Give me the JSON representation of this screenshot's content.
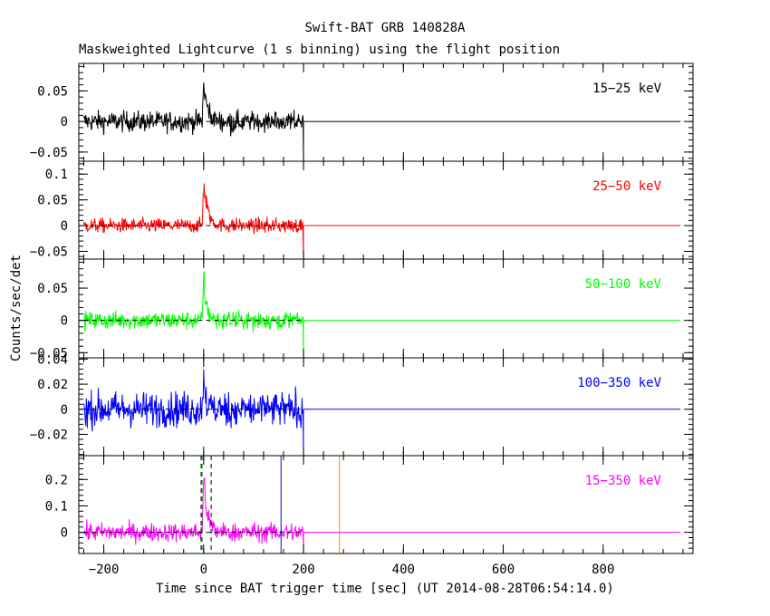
{
  "chart_data": {
    "type": "line",
    "title": "Swift-BAT GRB 140828A",
    "subtitle": "Maskweighted Lightcurve (1 s binning) using the flight position",
    "xlabel": "Time since BAT trigger time [sec] (UT 2014-08-28T06:54:14.0)",
    "ylabel": "Counts/sec/det",
    "xlim": [
      -250,
      980
    ],
    "xticks": [
      -200,
      0,
      200,
      400,
      600,
      800
    ],
    "xtick_labels": [
      "−200",
      "0",
      "200",
      "400",
      "600",
      "800"
    ],
    "data_end": 200,
    "panels": [
      {
        "band": "15−25 keV",
        "color": "#000000",
        "ylim": [
          -0.065,
          0.095
        ],
        "yticks": [
          -0.05,
          0,
          0.05
        ],
        "ytick_labels": [
          "−0.05",
          "0",
          "0.05"
        ],
        "noise_sigma": 0.012,
        "peak": 0.06,
        "peak_time": 0,
        "decay": 8
      },
      {
        "band": "25−50 keV",
        "color": "#ff0000",
        "ylim": [
          -0.065,
          0.125
        ],
        "yticks": [
          -0.05,
          0,
          0.05,
          0.1
        ],
        "ytick_labels": [
          "−0.05",
          "0",
          "0.05",
          "0.1"
        ],
        "noise_sigma": 0.01,
        "peak": 0.085,
        "peak_time": 0,
        "decay": 8
      },
      {
        "band": "50−100 keV",
        "color": "#00ff00",
        "ylim": [
          -0.058,
          0.095
        ],
        "yticks": [
          -0.05,
          0,
          0.05
        ],
        "ytick_labels": [
          "−0.05",
          "0",
          "0.05"
        ],
        "noise_sigma": 0.01,
        "peak": 0.065,
        "peak_time": 0,
        "decay": 6
      },
      {
        "band": "100−350 keV",
        "color": "#0000ff",
        "ylim": [
          -0.037,
          0.041
        ],
        "yticks": [
          -0.02,
          0,
          0.02,
          0.04
        ],
        "ytick_labels": [
          "−0.02",
          "0",
          "0.02",
          "0.04"
        ],
        "noise_sigma": 0.01,
        "peak": 0.03,
        "peak_time": 0,
        "decay": 4
      },
      {
        "band": "15−350 keV",
        "color": "#ff00ff",
        "ylim": [
          -0.08,
          0.29
        ],
        "yticks": [
          0,
          0.1,
          0.2
        ],
        "ytick_labels": [
          "0",
          "0.1",
          "0.2"
        ],
        "noise_sigma": 0.025,
        "peak": 0.22,
        "peak_time": 0,
        "decay": 7,
        "markers": [
          {
            "x": -5,
            "color": "#000000",
            "style": "dashed"
          },
          {
            "x": 15,
            "color": "#000000",
            "style": "dashed"
          },
          {
            "x": -3,
            "color": "#00aa00",
            "style": "dashed"
          },
          {
            "x": 155,
            "color": "#0000ff",
            "style": "solid"
          },
          {
            "x": 272,
            "color": "#ff8c00",
            "style": "solid"
          }
        ]
      }
    ]
  }
}
